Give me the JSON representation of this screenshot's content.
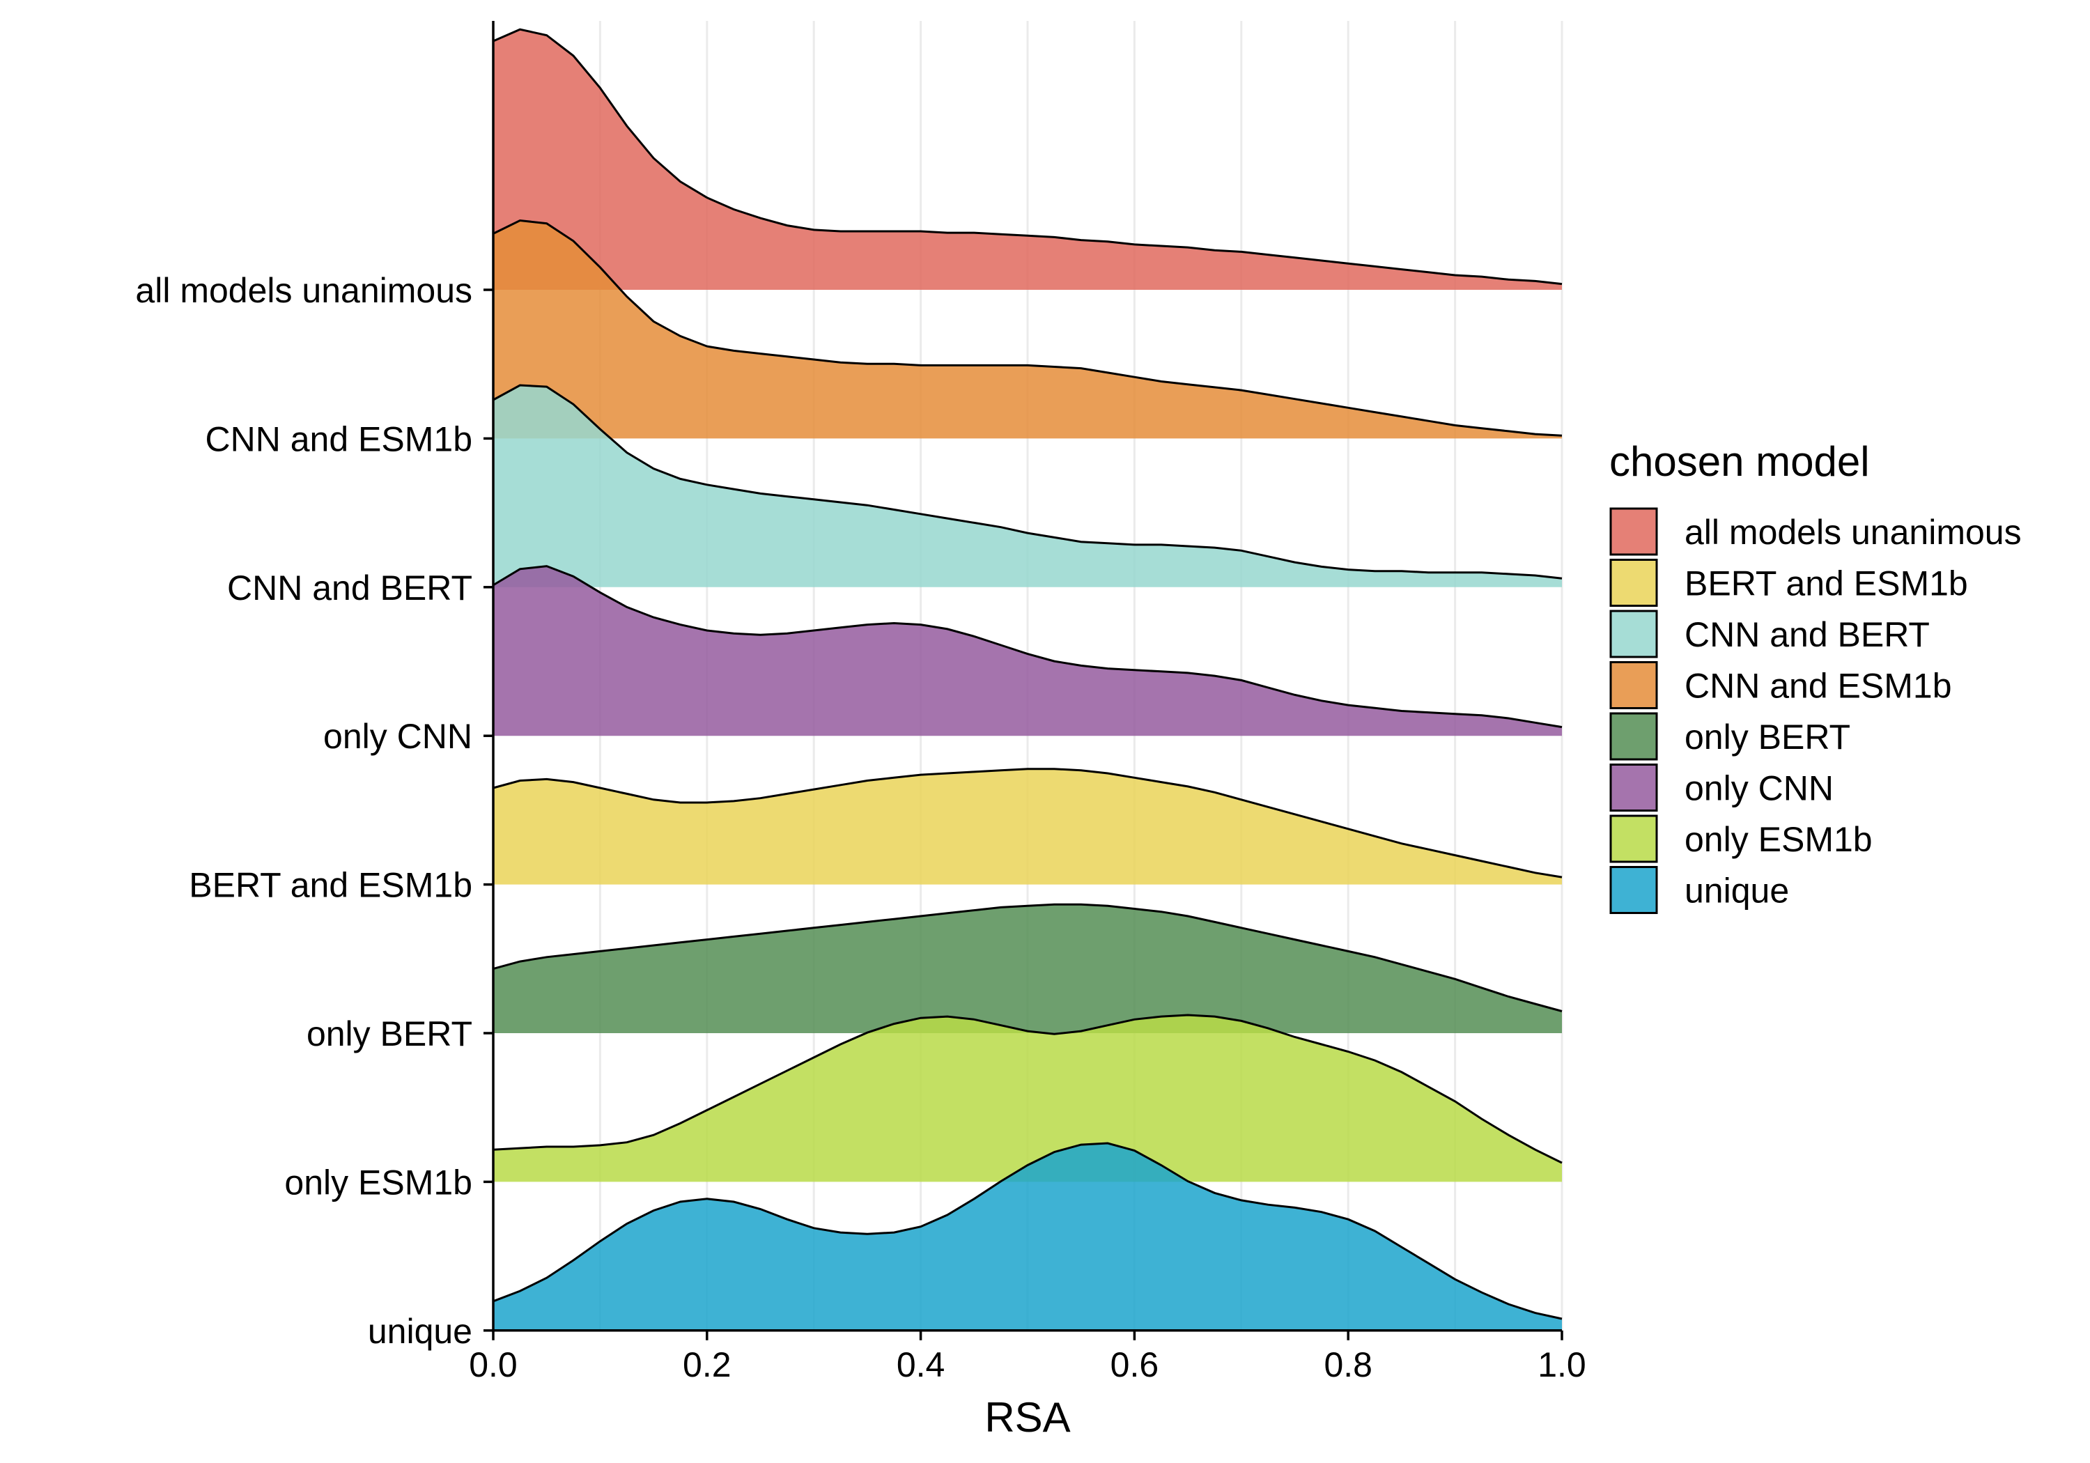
{
  "chart_data": {
    "type": "ridgeline",
    "xlabel": "RSA",
    "ylabel": "",
    "xlim": [
      0,
      1
    ],
    "x_ticks": [
      0.0,
      0.2,
      0.4,
      0.6,
      0.8,
      1.0
    ],
    "x_tick_labels": [
      "0.0",
      "0.2",
      "0.4",
      "0.6",
      "0.8",
      "1.0"
    ],
    "grid": true,
    "legend": {
      "title": "chosen model",
      "placement": "right",
      "entries": [
        {
          "label": "all models unanimous",
          "color": "#E06A5E"
        },
        {
          "label": "BERT and ESM1b",
          "color": "#EAD458"
        },
        {
          "label": "CNN and BERT",
          "color": "#96D7CF"
        },
        {
          "label": "CNN and ESM1b",
          "color": "#E58D3A"
        },
        {
          "label": "only BERT",
          "color": "#558E55"
        },
        {
          "label": "only CNN",
          "color": "#955C9F"
        },
        {
          "label": "only ESM1b",
          "color": "#B9DB48"
        },
        {
          "label": "unique",
          "color": "#1CA4CC"
        }
      ]
    },
    "x": [
      0,
      0.025,
      0.05,
      0.075,
      0.1,
      0.125,
      0.15,
      0.175,
      0.2,
      0.225,
      0.25,
      0.275,
      0.3,
      0.325,
      0.35,
      0.375,
      0.4,
      0.425,
      0.45,
      0.475,
      0.5,
      0.525,
      0.55,
      0.575,
      0.6,
      0.625,
      0.65,
      0.675,
      0.7,
      0.725,
      0.75,
      0.775,
      0.8,
      0.825,
      0.85,
      0.875,
      0.9,
      0.925,
      0.95,
      0.975,
      1
    ],
    "series": [
      {
        "name": "all models unanimous",
        "color": "#E06A5E",
        "values": [
          1.7,
          1.78,
          1.74,
          1.6,
          1.38,
          1.12,
          0.9,
          0.74,
          0.63,
          0.55,
          0.49,
          0.44,
          0.41,
          0.4,
          0.4,
          0.4,
          0.4,
          0.39,
          0.39,
          0.38,
          0.37,
          0.36,
          0.34,
          0.33,
          0.31,
          0.3,
          0.29,
          0.27,
          0.26,
          0.24,
          0.22,
          0.2,
          0.18,
          0.16,
          0.14,
          0.12,
          0.1,
          0.09,
          0.07,
          0.06,
          0.04
        ]
      },
      {
        "name": "CNN and ESM1b",
        "color": "#E58D3A",
        "values": [
          1.4,
          1.49,
          1.47,
          1.35,
          1.17,
          0.97,
          0.8,
          0.7,
          0.63,
          0.6,
          0.58,
          0.56,
          0.54,
          0.52,
          0.51,
          0.51,
          0.5,
          0.5,
          0.5,
          0.5,
          0.5,
          0.49,
          0.48,
          0.45,
          0.42,
          0.39,
          0.37,
          0.35,
          0.33,
          0.3,
          0.27,
          0.24,
          0.21,
          0.18,
          0.15,
          0.12,
          0.09,
          0.07,
          0.05,
          0.03,
          0.02
        ]
      },
      {
        "name": "CNN and BERT",
        "color": "#96D7CF",
        "values": [
          1.28,
          1.38,
          1.37,
          1.25,
          1.08,
          0.92,
          0.81,
          0.74,
          0.7,
          0.67,
          0.64,
          0.62,
          0.6,
          0.58,
          0.56,
          0.53,
          0.5,
          0.47,
          0.44,
          0.41,
          0.37,
          0.34,
          0.31,
          0.3,
          0.29,
          0.29,
          0.28,
          0.27,
          0.25,
          0.21,
          0.17,
          0.14,
          0.12,
          0.11,
          0.11,
          0.1,
          0.1,
          0.1,
          0.09,
          0.08,
          0.06
        ]
      },
      {
        "name": "only CNN",
        "color": "#955C9F",
        "values": [
          1.03,
          1.14,
          1.16,
          1.09,
          0.98,
          0.88,
          0.81,
          0.76,
          0.72,
          0.7,
          0.69,
          0.7,
          0.72,
          0.74,
          0.76,
          0.77,
          0.76,
          0.73,
          0.68,
          0.62,
          0.56,
          0.51,
          0.48,
          0.46,
          0.45,
          0.44,
          0.43,
          0.41,
          0.38,
          0.33,
          0.28,
          0.24,
          0.21,
          0.19,
          0.17,
          0.16,
          0.15,
          0.14,
          0.12,
          0.09,
          0.06
        ]
      },
      {
        "name": "BERT and ESM1b",
        "color": "#EAD458",
        "values": [
          0.66,
          0.71,
          0.72,
          0.7,
          0.66,
          0.62,
          0.58,
          0.56,
          0.56,
          0.57,
          0.59,
          0.62,
          0.65,
          0.68,
          0.71,
          0.73,
          0.75,
          0.76,
          0.77,
          0.78,
          0.79,
          0.79,
          0.78,
          0.76,
          0.73,
          0.7,
          0.67,
          0.63,
          0.58,
          0.53,
          0.48,
          0.43,
          0.38,
          0.33,
          0.28,
          0.24,
          0.2,
          0.16,
          0.12,
          0.08,
          0.05
        ]
      },
      {
        "name": "only BERT",
        "color": "#558E55",
        "values": [
          0.44,
          0.49,
          0.52,
          0.54,
          0.56,
          0.58,
          0.6,
          0.62,
          0.64,
          0.66,
          0.68,
          0.7,
          0.72,
          0.74,
          0.76,
          0.78,
          0.8,
          0.82,
          0.84,
          0.86,
          0.87,
          0.88,
          0.88,
          0.87,
          0.85,
          0.83,
          0.8,
          0.76,
          0.72,
          0.68,
          0.64,
          0.6,
          0.56,
          0.52,
          0.47,
          0.42,
          0.37,
          0.31,
          0.25,
          0.2,
          0.15
        ]
      },
      {
        "name": "only ESM1b",
        "color": "#B9DB48",
        "values": [
          0.22,
          0.23,
          0.24,
          0.24,
          0.25,
          0.27,
          0.32,
          0.4,
          0.49,
          0.58,
          0.67,
          0.76,
          0.85,
          0.94,
          1.02,
          1.08,
          1.12,
          1.13,
          1.11,
          1.07,
          1.03,
          1.01,
          1.03,
          1.07,
          1.11,
          1.13,
          1.14,
          1.13,
          1.1,
          1.05,
          0.99,
          0.94,
          0.89,
          0.83,
          0.75,
          0.65,
          0.55,
          0.43,
          0.32,
          0.22,
          0.13
        ]
      },
      {
        "name": "unique",
        "color": "#1CA4CC",
        "values": [
          0.2,
          0.27,
          0.36,
          0.48,
          0.61,
          0.73,
          0.82,
          0.88,
          0.9,
          0.88,
          0.83,
          0.76,
          0.7,
          0.67,
          0.66,
          0.67,
          0.71,
          0.79,
          0.9,
          1.02,
          1.13,
          1.22,
          1.27,
          1.28,
          1.23,
          1.13,
          1.02,
          0.94,
          0.89,
          0.86,
          0.84,
          0.81,
          0.76,
          0.68,
          0.57,
          0.46,
          0.35,
          0.26,
          0.18,
          0.12,
          0.08
        ]
      }
    ]
  }
}
